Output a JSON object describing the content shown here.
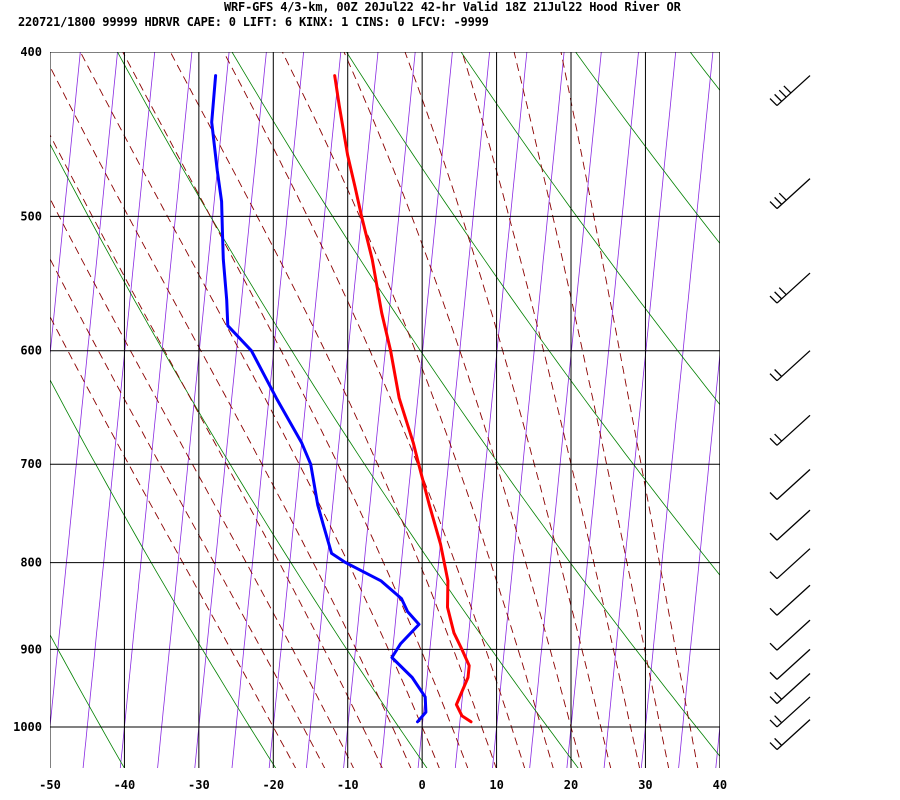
{
  "header": {
    "line1": "WRF-GFS 4/3-km, 00Z 20Jul22 42-hr Valid 18Z 21Jul22 Hood River OR",
    "line2": "220721/1800 99999  HDRVR   CAPE:     0 LIFT:     6 KINX:     1 CINS:     0 LFCV: -9999"
  },
  "chart_data": {
    "type": "line",
    "subtype": "skew-T log-P sounding",
    "x_axis": {
      "ticks": [
        -50,
        -40,
        -30,
        -20,
        -10,
        0,
        10,
        20,
        30,
        40
      ],
      "range": [
        -50,
        40
      ]
    },
    "y_axis": {
      "ticks": [
        400,
        500,
        600,
        700,
        800,
        900,
        1000
      ],
      "range": [
        1050,
        400
      ],
      "scale": "log"
    },
    "grid": true,
    "colors": {
      "temperature": "#ff0000",
      "dewpoint": "#0000ff",
      "dry_adiabat": "#008000",
      "moist_adiabat": "#8b0000",
      "isotherm_skewed": "#8a2be2",
      "grid": "#000000"
    },
    "series": [
      {
        "key": "temperature",
        "color": "#ff0000",
        "points": [
          [
            413,
            -20.5
          ],
          [
            430,
            -19.5
          ],
          [
            460,
            -17.7
          ],
          [
            480,
            -16.3
          ],
          [
            500,
            -15.0
          ],
          [
            530,
            -13.0
          ],
          [
            570,
            -11.0
          ],
          [
            600,
            -9.3
          ],
          [
            640,
            -7.5
          ],
          [
            680,
            -5.0
          ],
          [
            700,
            -4.0
          ],
          [
            740,
            -2.0
          ],
          [
            780,
            0.0
          ],
          [
            820,
            1.5
          ],
          [
            850,
            1.8
          ],
          [
            880,
            3.0
          ],
          [
            900,
            4.3
          ],
          [
            920,
            5.5
          ],
          [
            935,
            5.5
          ],
          [
            955,
            4.8
          ],
          [
            970,
            4.3
          ],
          [
            985,
            5.2
          ],
          [
            993,
            6.5
          ]
        ]
      },
      {
        "key": "dewpoint",
        "color": "#0000ff",
        "points": [
          [
            413,
            -36.5
          ],
          [
            440,
            -36.4
          ],
          [
            470,
            -35.0
          ],
          [
            490,
            -34.0
          ],
          [
            510,
            -33.5
          ],
          [
            530,
            -33.0
          ],
          [
            560,
            -32.0
          ],
          [
            580,
            -31.5
          ],
          [
            600,
            -28.0
          ],
          [
            640,
            -24.0
          ],
          [
            680,
            -20.0
          ],
          [
            700,
            -18.5
          ],
          [
            740,
            -17.0
          ],
          [
            760,
            -16.0
          ],
          [
            790,
            -14.5
          ],
          [
            800,
            -12.5
          ],
          [
            820,
            -7.5
          ],
          [
            840,
            -4.5
          ],
          [
            855,
            -3.5
          ],
          [
            870,
            -1.8
          ],
          [
            893,
            -4.0
          ],
          [
            910,
            -5.0
          ],
          [
            935,
            -2.0
          ],
          [
            960,
            0.0
          ],
          [
            980,
            0.3
          ],
          [
            993,
            -0.7
          ]
        ]
      }
    ],
    "wind_barbs": [
      {
        "pressure": 413,
        "barbs": 4
      },
      {
        "pressure": 475,
        "barbs": 3
      },
      {
        "pressure": 540,
        "barbs": 3
      },
      {
        "pressure": 600,
        "barbs": 2
      },
      {
        "pressure": 655,
        "barbs": 2
      },
      {
        "pressure": 705,
        "barbs": 1
      },
      {
        "pressure": 745,
        "barbs": 1
      },
      {
        "pressure": 785,
        "barbs": 1
      },
      {
        "pressure": 825,
        "barbs": 1
      },
      {
        "pressure": 865,
        "barbs": 1
      },
      {
        "pressure": 900,
        "barbs": 1
      },
      {
        "pressure": 930,
        "barbs": 2
      },
      {
        "pressure": 960,
        "barbs": 2
      },
      {
        "pressure": 990,
        "barbs": 2
      }
    ]
  }
}
